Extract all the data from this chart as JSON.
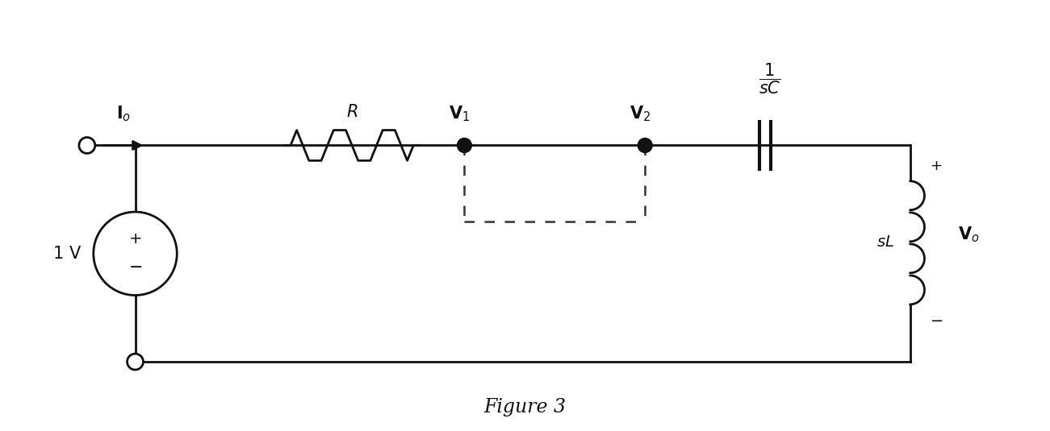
{
  "fig_width": 13.01,
  "fig_height": 5.35,
  "dpi": 100,
  "bg_color": "#ffffff",
  "line_color": "#111111",
  "line_width": 2.0,
  "figure_label": "Figure 3",
  "title_fontsize": 17
}
